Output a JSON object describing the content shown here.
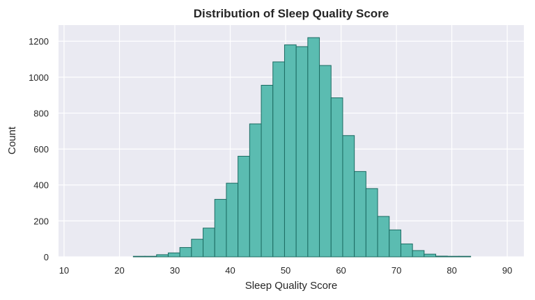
{
  "chart_data": {
    "type": "bar",
    "title": "Distribution of Sleep Quality Score",
    "xlabel": "Sleep Quality Score",
    "ylabel": "Count",
    "xlim": [
      9,
      93
    ],
    "ylim": [
      0,
      1290
    ],
    "x_ticks": [
      10,
      20,
      30,
      40,
      50,
      60,
      70,
      80,
      90
    ],
    "y_ticks": [
      0,
      200,
      400,
      600,
      800,
      1000,
      1200
    ],
    "grid": true,
    "colors": {
      "background": "#eaeaf2",
      "grid": "#ffffff",
      "bar_fill": "#5bbcb1",
      "bar_edge": "#1b6b62"
    },
    "bins": [
      {
        "x0": 11.9,
        "x1": 14.1,
        "count": 0
      },
      {
        "x0": 14.1,
        "x1": 16.2,
        "count": 0
      },
      {
        "x0": 16.2,
        "x1": 18.3,
        "count": 0
      },
      {
        "x0": 18.3,
        "x1": 20.4,
        "count": 0
      },
      {
        "x0": 20.4,
        "x1": 22.5,
        "count": 0
      },
      {
        "x0": 22.5,
        "x1": 24.6,
        "count": 2
      },
      {
        "x0": 24.6,
        "x1": 26.7,
        "count": 3
      },
      {
        "x0": 26.7,
        "x1": 28.8,
        "count": 12
      },
      {
        "x0": 28.8,
        "x1": 30.9,
        "count": 22
      },
      {
        "x0": 30.9,
        "x1": 33.0,
        "count": 52
      },
      {
        "x0": 33.0,
        "x1": 35.1,
        "count": 98
      },
      {
        "x0": 35.1,
        "x1": 37.2,
        "count": 160
      },
      {
        "x0": 37.2,
        "x1": 39.3,
        "count": 320
      },
      {
        "x0": 39.3,
        "x1": 41.4,
        "count": 410
      },
      {
        "x0": 41.4,
        "x1": 43.5,
        "count": 560
      },
      {
        "x0": 43.5,
        "x1": 45.6,
        "count": 740
      },
      {
        "x0": 45.6,
        "x1": 47.7,
        "count": 955
      },
      {
        "x0": 47.7,
        "x1": 49.8,
        "count": 1085
      },
      {
        "x0": 49.8,
        "x1": 51.9,
        "count": 1180
      },
      {
        "x0": 51.9,
        "x1": 54.0,
        "count": 1170
      },
      {
        "x0": 54.0,
        "x1": 56.1,
        "count": 1220
      },
      {
        "x0": 56.1,
        "x1": 58.2,
        "count": 1065
      },
      {
        "x0": 58.2,
        "x1": 60.3,
        "count": 885
      },
      {
        "x0": 60.3,
        "x1": 62.4,
        "count": 675
      },
      {
        "x0": 62.4,
        "x1": 64.5,
        "count": 475
      },
      {
        "x0": 64.5,
        "x1": 66.6,
        "count": 380
      },
      {
        "x0": 66.6,
        "x1": 68.7,
        "count": 225
      },
      {
        "x0": 68.7,
        "x1": 70.8,
        "count": 150
      },
      {
        "x0": 70.8,
        "x1": 72.9,
        "count": 72
      },
      {
        "x0": 72.9,
        "x1": 75.0,
        "count": 35
      },
      {
        "x0": 75.0,
        "x1": 77.1,
        "count": 15
      },
      {
        "x0": 77.1,
        "x1": 79.2,
        "count": 4
      },
      {
        "x0": 79.2,
        "x1": 81.3,
        "count": 2
      },
      {
        "x0": 81.3,
        "x1": 83.4,
        "count": 1
      }
    ]
  }
}
